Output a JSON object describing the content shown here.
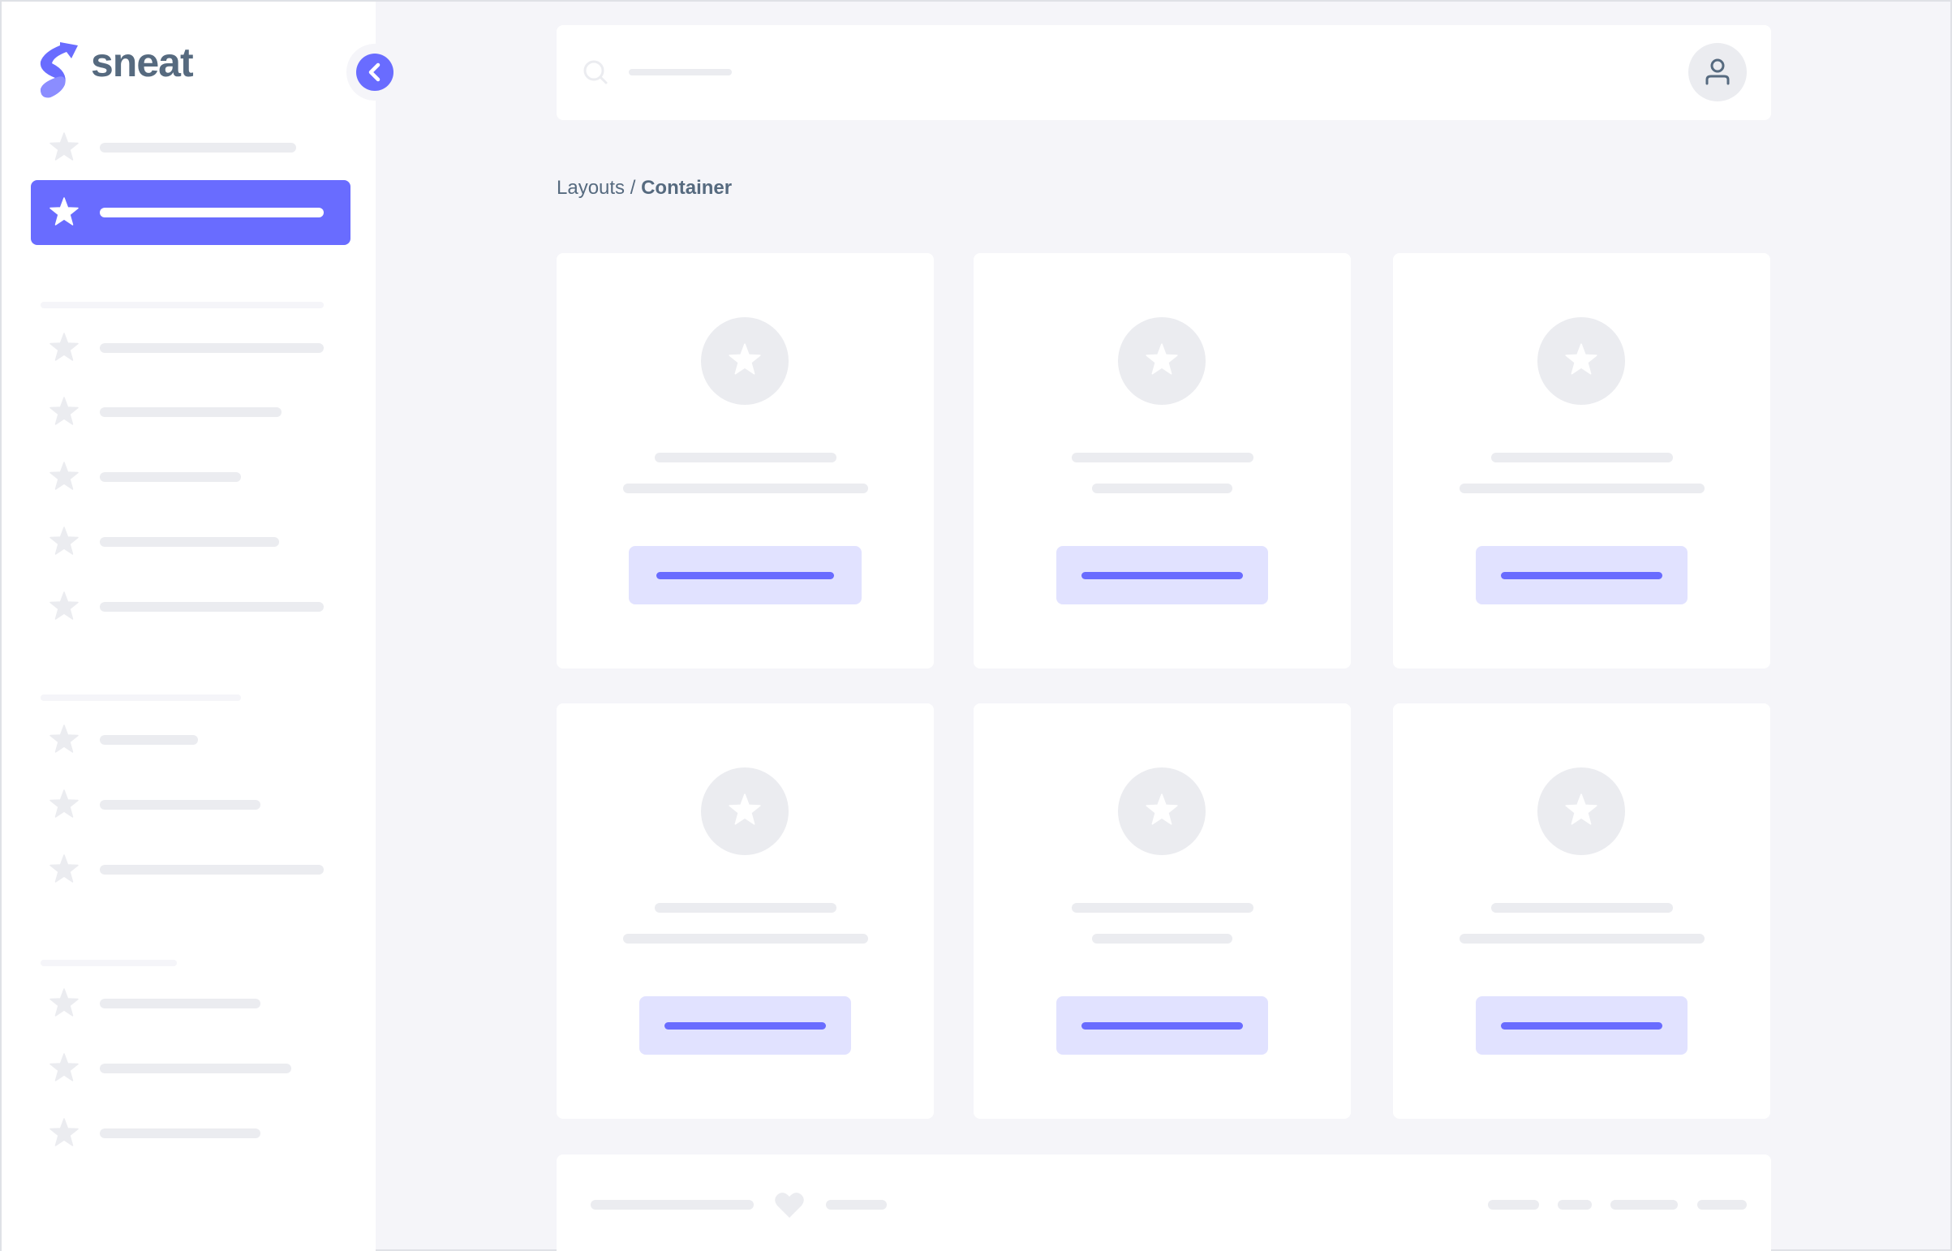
{
  "brand": {
    "name": "sneat",
    "primary_color": "#696cff",
    "text_color": "#566a7f"
  },
  "sidebar": {
    "collapse_icon": "chevron-left-icon",
    "item_icon": "star-icon",
    "active_index": 1
  },
  "navbar": {
    "search_icon": "search-icon",
    "user_icon": "user-icon"
  },
  "breadcrumb": {
    "parent": "Layouts",
    "separator": "/",
    "current": "Container"
  },
  "cards": {
    "icon": "star-icon",
    "count": 6
  },
  "footer": {
    "icon": "heart-icon"
  }
}
